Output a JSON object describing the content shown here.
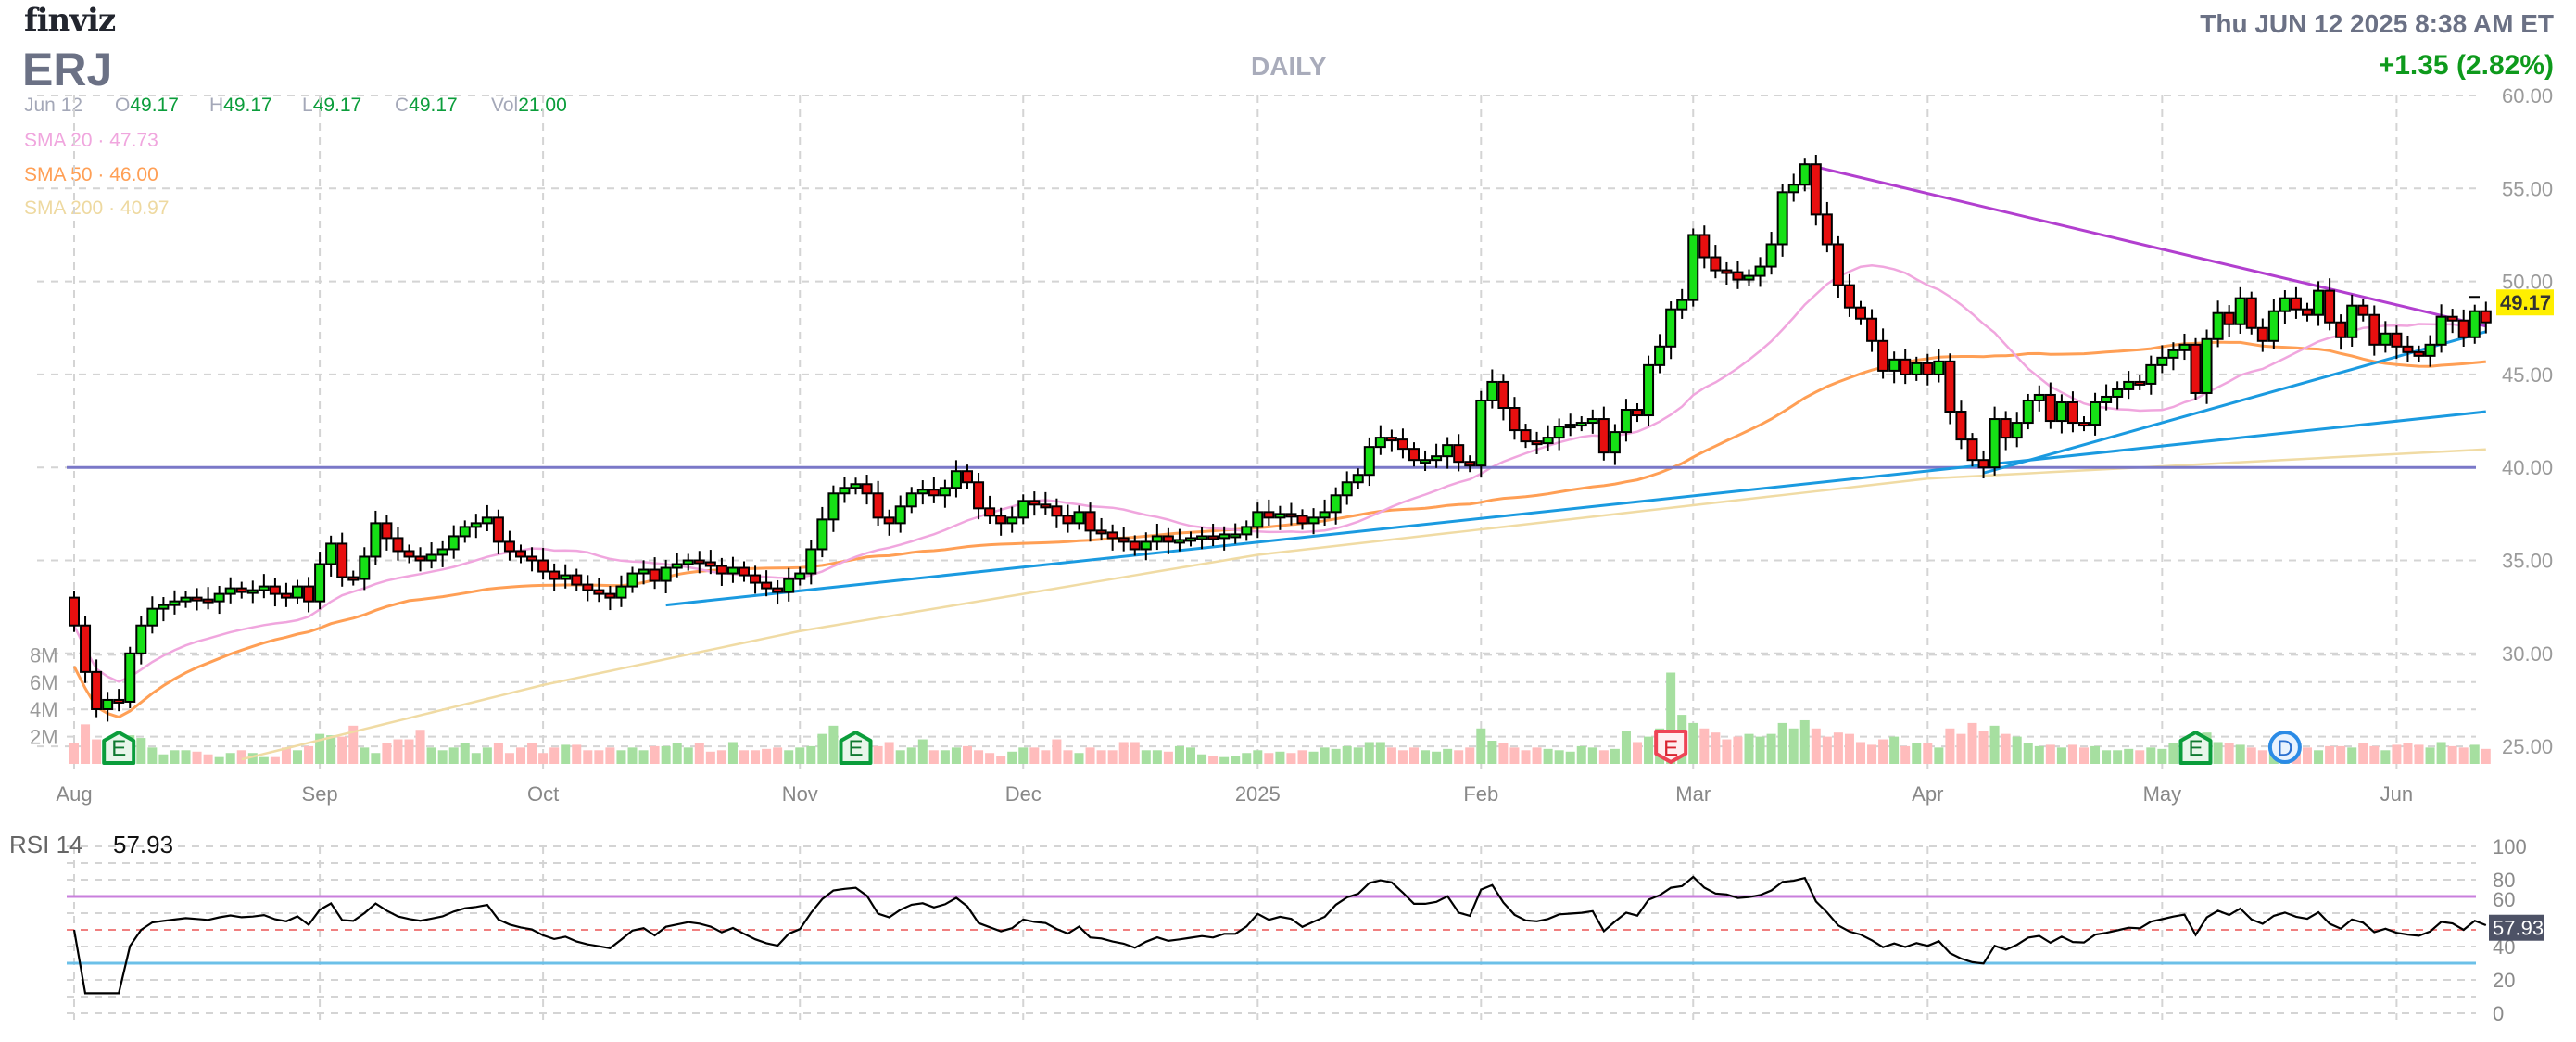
{
  "header": {
    "logo": "finviz",
    "ticker": "ERJ",
    "timeframe": "DAILY",
    "datetime": "Thu JUN 12 2025 8:38 AM ET",
    "change": "+1.35 (2.82%)"
  },
  "ohlc": {
    "date": "Jun 12",
    "o_label": "O",
    "o": "49.17",
    "h_label": "H",
    "h": "49.17",
    "l_label": "L",
    "l": "49.17",
    "c_label": "C",
    "c": "49.17",
    "vol_label": "Vol",
    "vol": "21.00"
  },
  "indicators": {
    "sma20": {
      "label": "SMA 20",
      "value": "47.73",
      "color": "#f0a6de"
    },
    "sma50": {
      "label": "SMA 50",
      "value": "46.00",
      "color": "#ff9f55"
    },
    "sma200": {
      "label": "SMA 200",
      "value": "40.97",
      "color": "#f0dba4"
    },
    "separator": "·"
  },
  "rsi": {
    "label": "RSI 14",
    "value": "57.93"
  },
  "chart_data": {
    "type": "candlestick",
    "last_price_label": "49.17",
    "price_axis": {
      "ylim": [
        25,
        60
      ],
      "ticks": [
        "60.00",
        "55.00",
        "50.00",
        "45.00",
        "40.00",
        "35.00",
        "30.00",
        "25.00"
      ]
    },
    "volume_axis": {
      "unit": "M",
      "ticks": [
        "8M",
        "6M",
        "4M",
        "2M"
      ]
    },
    "rsi_axis": {
      "ylim": [
        0,
        100
      ],
      "ticks": [
        "100",
        "80",
        "60",
        "40",
        "20",
        "0"
      ],
      "overbought": 70,
      "midline": 50,
      "oversold": 30
    },
    "x_labels": [
      {
        "label": "Aug",
        "index": 0
      },
      {
        "label": "Sep",
        "index": 22
      },
      {
        "label": "Oct",
        "index": 42
      },
      {
        "label": "Nov",
        "index": 65
      },
      {
        "label": "Dec",
        "index": 85
      },
      {
        "label": "2025",
        "index": 106
      },
      {
        "label": "Feb",
        "index": 126
      },
      {
        "label": "Mar",
        "index": 145
      },
      {
        "label": "Apr",
        "index": 166
      },
      {
        "label": "May",
        "index": 187
      },
      {
        "label": "Jun",
        "index": 208
      }
    ],
    "first_open": 33.0,
    "close": [
      31.5,
      29.0,
      27.0,
      27.5,
      27.4,
      30.0,
      31.5,
      32.4,
      32.6,
      32.8,
      33.0,
      32.9,
      32.8,
      33.2,
      33.5,
      33.3,
      33.4,
      33.6,
      33.2,
      33.0,
      33.6,
      32.8,
      34.8,
      35.9,
      34.1,
      34.0,
      35.2,
      37.0,
      36.2,
      35.5,
      35.2,
      35.0,
      35.3,
      35.6,
      36.3,
      36.8,
      37.0,
      37.3,
      36.0,
      35.5,
      35.2,
      35.0,
      34.4,
      34.0,
      34.2,
      33.7,
      33.4,
      33.2,
      33.0,
      33.6,
      34.3,
      34.5,
      33.9,
      34.6,
      34.8,
      35.0,
      34.9,
      34.7,
      34.3,
      34.6,
      34.2,
      33.8,
      33.5,
      33.3,
      34.0,
      34.3,
      35.6,
      37.2,
      38.6,
      38.9,
      39.1,
      38.6,
      37.3,
      37.0,
      37.9,
      38.6,
      38.8,
      38.5,
      38.9,
      39.8,
      39.2,
      37.8,
      37.4,
      37.0,
      37.3,
      38.2,
      38.0,
      37.9,
      37.4,
      37.0,
      37.6,
      36.6,
      36.5,
      36.2,
      36.0,
      35.6,
      36.0,
      36.3,
      36.0,
      36.1,
      36.2,
      36.3,
      36.2,
      36.4,
      36.4,
      36.8,
      37.6,
      37.3,
      37.5,
      37.4,
      37.0,
      37.3,
      37.6,
      38.5,
      39.2,
      39.6,
      41.1,
      41.6,
      41.5,
      41.0,
      40.4,
      40.4,
      40.6,
      41.2,
      40.3,
      40.1,
      43.6,
      44.6,
      43.2,
      42.0,
      41.4,
      41.3,
      41.6,
      42.2,
      42.3,
      42.4,
      42.6,
      40.8,
      41.9,
      43.1,
      42.8,
      45.5,
      46.5,
      48.5,
      49.0,
      52.5,
      51.3,
      50.6,
      50.5,
      50.1,
      50.3,
      50.8,
      52.0,
      54.8,
      55.2,
      56.3,
      53.6,
      52.0,
      49.8,
      48.6,
      48.0,
      46.8,
      45.2,
      45.8,
      45.0,
      45.6,
      45.0,
      45.7,
      43.0,
      41.5,
      40.4,
      40.0,
      42.6,
      41.6,
      42.4,
      43.6,
      43.9,
      42.5,
      43.5,
      42.4,
      42.3,
      43.5,
      43.8,
      44.2,
      44.6,
      44.5,
      45.5,
      45.9,
      46.3,
      46.6,
      44.0,
      46.9,
      48.3,
      47.7,
      49.1,
      47.5,
      46.8,
      48.4,
      49.1,
      48.5,
      48.2,
      49.5,
      47.8,
      47.0,
      48.7,
      48.2,
      46.6,
      47.2,
      46.5,
      46.2,
      46.0,
      46.6,
      48.1,
      47.9,
      47.0,
      48.4,
      47.8
    ],
    "volume_m": [
      1.5,
      2.9,
      1.8,
      1.5,
      1.5,
      2.1,
      1.9,
      1.2,
      0.7,
      1.0,
      1.0,
      0.9,
      0.7,
      0.5,
      0.8,
      1.0,
      0.8,
      0.5,
      0.5,
      1.2,
      1.0,
      1.3,
      2.2,
      2.1,
      2.0,
      2.8,
      1.2,
      0.8,
      1.5,
      1.8,
      1.8,
      2.5,
      1.2,
      1.0,
      1.2,
      1.5,
      0.8,
      1.2,
      1.5,
      0.8,
      1.2,
      1.5,
      0.8,
      1.2,
      1.4,
      1.4,
      1.0,
      1.0,
      1.2,
      1.0,
      1.2,
      1.0,
      1.3,
      1.3,
      1.5,
      1.2,
      1.5,
      0.9,
      1.0,
      1.6,
      1.0,
      1.0,
      1.1,
      1.2,
      1.0,
      1.2,
      1.3,
      2.2,
      2.8,
      1.6,
      1.4,
      1.2,
      1.3,
      1.6,
      1.0,
      1.2,
      1.8,
      1.0,
      1.0,
      1.2,
      1.3,
      1.0,
      0.8,
      0.6,
      0.9,
      1.2,
      1.2,
      1.0,
      1.8,
      1.0,
      0.8,
      1.2,
      1.0,
      1.0,
      1.6,
      1.6,
      1.0,
      1.0,
      0.9,
      1.3,
      1.2,
      0.7,
      0.6,
      0.5,
      0.6,
      0.8,
      1.0,
      0.8,
      0.9,
      0.8,
      1.0,
      0.9,
      1.2,
      1.1,
      1.3,
      1.2,
      1.6,
      1.6,
      1.2,
      1.0,
      1.2,
      1.0,
      0.9,
      1.1,
      1.0,
      1.2,
      2.6,
      1.7,
      1.5,
      1.2,
      1.0,
      1.2,
      1.1,
      1.0,
      0.9,
      1.3,
      1.2,
      1.0,
      1.1,
      2.4,
      1.6,
      2.0,
      2.6,
      6.7,
      3.6,
      3.0,
      2.6,
      2.3,
      1.8,
      2.0,
      2.2,
      2.0,
      2.2,
      3.0,
      2.6,
      3.2,
      2.6,
      2.0,
      2.3,
      2.2,
      1.6,
      1.4,
      1.8,
      2.0,
      1.3,
      1.5,
      1.5,
      1.2,
      2.6,
      2.2,
      3.0,
      2.4,
      2.8,
      2.2,
      2.0,
      1.5,
      1.3,
      1.4,
      1.2,
      1.4,
      1.2,
      1.3,
      1.0,
      1.0,
      1.1,
      1.0,
      1.2,
      1.1,
      1.5,
      1.3,
      2.0,
      2.3,
      1.6,
      1.5,
      1.4,
      1.2,
      1.0,
      1.0,
      1.2,
      0.9,
      1.2,
      1.0,
      1.3,
      1.3,
      1.2,
      1.5,
      1.3,
      1.0,
      1.4,
      1.5,
      1.4,
      1.2,
      1.6,
      1.3,
      1.2,
      1.4,
      1.1
    ],
    "sma200_anchors": [
      [
        15,
        24.3
      ],
      [
        42,
        28.3
      ],
      [
        65,
        31.2
      ],
      [
        106,
        35.3
      ],
      [
        166,
        39.4
      ],
      [
        216,
        40.97
      ]
    ],
    "horizontal_line": {
      "value": 40,
      "color": "#7a78c8"
    },
    "trendlines": [
      {
        "name": "resistance",
        "from": [
          155,
          56.3
        ],
        "to": [
          216,
          47.6
        ],
        "color": "#b23fcf"
      },
      {
        "name": "support-long",
        "from": [
          53,
          32.6
        ],
        "to": [
          216,
          43.0
        ],
        "color": "#1a9ae0"
      },
      {
        "name": "support-short",
        "from": [
          171,
          39.7
        ],
        "to": [
          216,
          47.3
        ],
        "color": "#1a9ae0"
      }
    ],
    "events": [
      {
        "type": "earnings",
        "label": "E",
        "index": 4,
        "color": "#0b9d3b"
      },
      {
        "type": "earnings",
        "label": "E",
        "index": 70,
        "color": "#0b9d3b"
      },
      {
        "type": "earnings",
        "label": "E",
        "index": 143,
        "color": "#ee4455"
      },
      {
        "type": "earnings",
        "label": "E",
        "index": 190,
        "color": "#0b9d3b"
      },
      {
        "type": "dividend",
        "label": "D",
        "index": 198,
        "color": "#2b8be6"
      }
    ]
  }
}
